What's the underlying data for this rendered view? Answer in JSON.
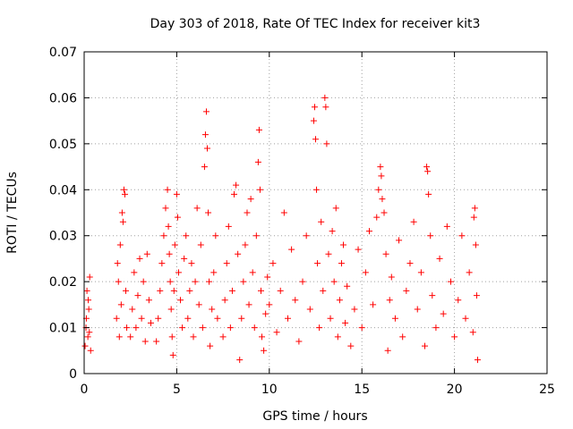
{
  "chart_data": {
    "type": "scatter",
    "title": "Day 303 of 2018, Rate Of TEC Index for receiver kit3",
    "xlabel": "GPS time / hours",
    "ylabel": "ROTI / TECUs",
    "xlim": [
      0,
      25
    ],
    "ylim": [
      0,
      0.07
    ],
    "xticks": [
      0,
      5,
      10,
      15,
      20,
      25
    ],
    "xtick_labels": [
      "0",
      "5",
      "10",
      "15",
      "20",
      "25"
    ],
    "yticks": [
      0,
      0.01,
      0.02,
      0.03,
      0.04,
      0.05,
      0.06,
      0.07
    ],
    "ytick_labels": [
      "0",
      "0.01",
      "0.02",
      "0.03",
      "0.04",
      "0.05",
      "0.06",
      "0.07"
    ],
    "grid": true,
    "marker": "+",
    "color": "#ff0000",
    "series": [
      {
        "name": "ROTI",
        "points": [
          [
            0.05,
            0.006
          ],
          [
            0.1,
            0.01
          ],
          [
            0.15,
            0.018
          ],
          [
            0.2,
            0.008
          ],
          [
            0.25,
            0.014
          ],
          [
            0.3,
            0.021
          ],
          [
            0.35,
            0.005
          ],
          [
            0.12,
            0.012
          ],
          [
            0.22,
            0.016
          ],
          [
            0.28,
            0.009
          ],
          [
            1.75,
            0.012
          ],
          [
            1.85,
            0.02
          ],
          [
            1.9,
            0.008
          ],
          [
            1.95,
            0.028
          ],
          [
            2.0,
            0.015
          ],
          [
            2.05,
            0.035
          ],
          [
            2.1,
            0.033
          ],
          [
            2.15,
            0.04
          ],
          [
            2.2,
            0.039
          ],
          [
            2.25,
            0.018
          ],
          [
            2.3,
            0.01
          ],
          [
            1.8,
            0.024
          ],
          [
            2.5,
            0.008
          ],
          [
            2.6,
            0.014
          ],
          [
            2.7,
            0.022
          ],
          [
            2.8,
            0.01
          ],
          [
            2.9,
            0.017
          ],
          [
            3.0,
            0.025
          ],
          [
            3.1,
            0.012
          ],
          [
            3.2,
            0.02
          ],
          [
            3.3,
            0.007
          ],
          [
            3.4,
            0.026
          ],
          [
            3.5,
            0.016
          ],
          [
            3.6,
            0.011
          ],
          [
            3.9,
            0.007
          ],
          [
            4.0,
            0.012
          ],
          [
            4.1,
            0.018
          ],
          [
            4.2,
            0.024
          ],
          [
            4.3,
            0.03
          ],
          [
            4.4,
            0.036
          ],
          [
            4.5,
            0.04
          ],
          [
            4.55,
            0.032
          ],
          [
            4.6,
            0.026
          ],
          [
            4.65,
            0.02
          ],
          [
            4.7,
            0.014
          ],
          [
            4.75,
            0.008
          ],
          [
            4.8,
            0.004
          ],
          [
            4.85,
            0.018
          ],
          [
            4.9,
            0.028
          ],
          [
            5.0,
            0.039
          ],
          [
            5.05,
            0.034
          ],
          [
            5.1,
            0.022
          ],
          [
            5.2,
            0.016
          ],
          [
            5.3,
            0.01
          ],
          [
            5.4,
            0.025
          ],
          [
            5.5,
            0.03
          ],
          [
            5.6,
            0.012
          ],
          [
            5.7,
            0.018
          ],
          [
            5.8,
            0.024
          ],
          [
            5.9,
            0.008
          ],
          [
            6.0,
            0.02
          ],
          [
            6.1,
            0.036
          ],
          [
            6.2,
            0.015
          ],
          [
            6.3,
            0.028
          ],
          [
            6.4,
            0.01
          ],
          [
            6.5,
            0.045
          ],
          [
            6.55,
            0.052
          ],
          [
            6.6,
            0.057
          ],
          [
            6.65,
            0.049
          ],
          [
            6.7,
            0.035
          ],
          [
            6.75,
            0.02
          ],
          [
            6.8,
            0.006
          ],
          [
            6.9,
            0.014
          ],
          [
            7.0,
            0.022
          ],
          [
            7.1,
            0.03
          ],
          [
            7.2,
            0.012
          ],
          [
            7.5,
            0.008
          ],
          [
            7.6,
            0.016
          ],
          [
            7.7,
            0.024
          ],
          [
            7.8,
            0.032
          ],
          [
            7.9,
            0.01
          ],
          [
            8.0,
            0.018
          ],
          [
            8.1,
            0.039
          ],
          [
            8.2,
            0.041
          ],
          [
            8.3,
            0.026
          ],
          [
            8.4,
            0.003
          ],
          [
            8.5,
            0.012
          ],
          [
            8.6,
            0.02
          ],
          [
            8.7,
            0.028
          ],
          [
            8.8,
            0.035
          ],
          [
            8.9,
            0.015
          ],
          [
            9.0,
            0.038
          ],
          [
            9.1,
            0.022
          ],
          [
            9.2,
            0.01
          ],
          [
            9.3,
            0.03
          ],
          [
            9.4,
            0.046
          ],
          [
            9.45,
            0.053
          ],
          [
            9.5,
            0.04
          ],
          [
            9.55,
            0.018
          ],
          [
            9.6,
            0.008
          ],
          [
            9.7,
            0.005
          ],
          [
            9.8,
            0.013
          ],
          [
            9.9,
            0.021
          ],
          [
            10.0,
            0.015
          ],
          [
            10.2,
            0.024
          ],
          [
            10.4,
            0.009
          ],
          [
            10.6,
            0.018
          ],
          [
            10.8,
            0.035
          ],
          [
            11.0,
            0.012
          ],
          [
            11.2,
            0.027
          ],
          [
            11.4,
            0.016
          ],
          [
            11.6,
            0.007
          ],
          [
            11.8,
            0.02
          ],
          [
            12.0,
            0.03
          ],
          [
            12.2,
            0.014
          ],
          [
            12.4,
            0.055
          ],
          [
            12.45,
            0.058
          ],
          [
            12.5,
            0.051
          ],
          [
            12.55,
            0.04
          ],
          [
            12.6,
            0.024
          ],
          [
            12.7,
            0.01
          ],
          [
            12.8,
            0.033
          ],
          [
            12.9,
            0.018
          ],
          [
            13.0,
            0.06
          ],
          [
            13.05,
            0.058
          ],
          [
            13.1,
            0.05
          ],
          [
            13.2,
            0.026
          ],
          [
            13.3,
            0.012
          ],
          [
            13.4,
            0.031
          ],
          [
            13.5,
            0.02
          ],
          [
            13.6,
            0.036
          ],
          [
            13.7,
            0.008
          ],
          [
            13.8,
            0.016
          ],
          [
            13.9,
            0.024
          ],
          [
            14.0,
            0.028
          ],
          [
            14.1,
            0.011
          ],
          [
            14.2,
            0.019
          ],
          [
            14.4,
            0.006
          ],
          [
            14.6,
            0.014
          ],
          [
            14.8,
            0.027
          ],
          [
            15.0,
            0.01
          ],
          [
            15.2,
            0.022
          ],
          [
            15.4,
            0.031
          ],
          [
            15.6,
            0.015
          ],
          [
            15.8,
            0.034
          ],
          [
            15.9,
            0.04
          ],
          [
            16.0,
            0.045
          ],
          [
            16.05,
            0.043
          ],
          [
            16.1,
            0.038
          ],
          [
            16.2,
            0.035
          ],
          [
            16.3,
            0.026
          ],
          [
            16.4,
            0.005
          ],
          [
            16.5,
            0.016
          ],
          [
            16.6,
            0.021
          ],
          [
            16.8,
            0.012
          ],
          [
            17.0,
            0.029
          ],
          [
            17.2,
            0.008
          ],
          [
            17.4,
            0.018
          ],
          [
            17.6,
            0.024
          ],
          [
            17.8,
            0.033
          ],
          [
            18.0,
            0.014
          ],
          [
            18.2,
            0.022
          ],
          [
            18.4,
            0.006
          ],
          [
            18.5,
            0.045
          ],
          [
            18.55,
            0.044
          ],
          [
            18.6,
            0.039
          ],
          [
            18.7,
            0.03
          ],
          [
            18.8,
            0.017
          ],
          [
            19.0,
            0.01
          ],
          [
            19.2,
            0.025
          ],
          [
            19.4,
            0.013
          ],
          [
            19.6,
            0.032
          ],
          [
            19.8,
            0.02
          ],
          [
            20.0,
            0.008
          ],
          [
            20.2,
            0.016
          ],
          [
            20.4,
            0.03
          ],
          [
            20.6,
            0.012
          ],
          [
            20.8,
            0.022
          ],
          [
            21.0,
            0.009
          ],
          [
            21.05,
            0.034
          ],
          [
            21.1,
            0.036
          ],
          [
            21.15,
            0.028
          ],
          [
            21.2,
            0.017
          ],
          [
            21.25,
            0.003
          ]
        ]
      }
    ]
  }
}
